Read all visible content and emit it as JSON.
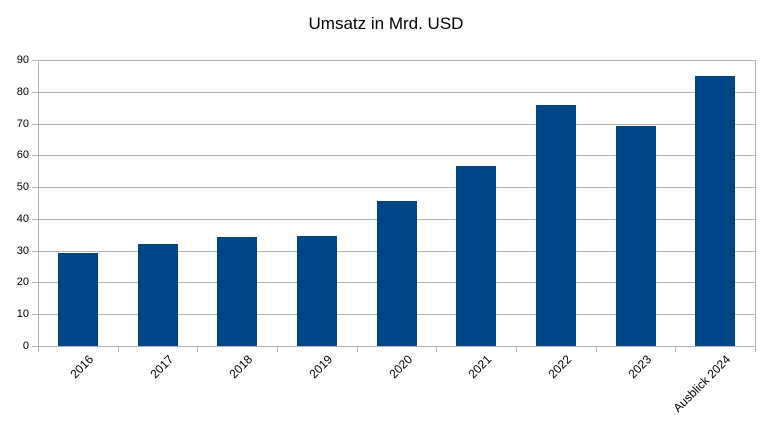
{
  "chart_data": {
    "type": "bar",
    "title": "Umsatz in Mrd. USD",
    "categories": [
      "2016",
      "2017",
      "2018",
      "2019",
      "2020",
      "2021",
      "2022",
      "2023",
      "Ausblick 2024"
    ],
    "values": [
      29.4,
      32.1,
      34.2,
      34.6,
      45.5,
      56.8,
      75.9,
      69.3,
      85.0
    ],
    "xlabel": "",
    "ylabel": "",
    "ylim": [
      0,
      90
    ],
    "ytick_step": 10,
    "ytick_labels": [
      "0",
      "10",
      "20",
      "30",
      "40",
      "50",
      "60",
      "70",
      "80",
      "90"
    ],
    "grid": "horizontal",
    "legend": "none",
    "bar_color": "#004586",
    "grid_color": "#b3b3b3",
    "axis_color": "#b3b3b3",
    "text_color": "#000000",
    "background_color": "#ffffff",
    "x_label_rotation_deg": 45
  }
}
